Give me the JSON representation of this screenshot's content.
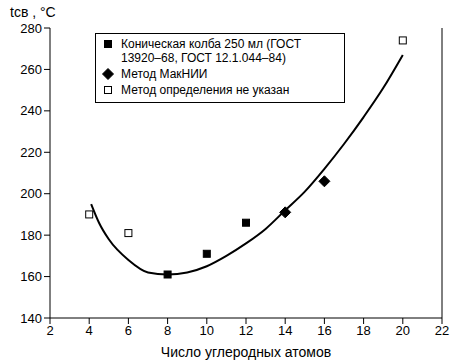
{
  "chart_data": {
    "type": "scatter",
    "xlabel": "Число углеродных атомов",
    "ylabel": "tсв , °C",
    "xlim": [
      2,
      22
    ],
    "xticks": [
      2,
      4,
      6,
      8,
      10,
      12,
      14,
      16,
      18,
      20,
      22
    ],
    "ylim": [
      140,
      280
    ],
    "yticks": [
      140,
      160,
      180,
      200,
      220,
      240,
      260,
      280
    ],
    "grid": false,
    "legend": "upper left",
    "series": [
      {
        "name": "Коническая колба 250 мл (ГОСТ 13920–68, ГОСТ 12.1.044–84)",
        "color": "#000000",
        "marker": "square",
        "x": [
          8,
          10,
          12
        ],
        "values": [
          161,
          171,
          186
        ]
      },
      {
        "name": "Метод МакНИИ",
        "color": "#000000",
        "marker": "diamond",
        "x": [
          14,
          16
        ],
        "values": [
          191,
          206
        ]
      },
      {
        "name": "Метод определения не указан",
        "color": "#000000",
        "marker": "open_square",
        "x": [
          4,
          6,
          20
        ],
        "values": [
          190,
          181,
          274
        ]
      },
      {
        "type": "line",
        "color": "#000000",
        "line_style": "solid",
        "x": [
          4.1,
          4.5,
          5,
          6,
          7,
          8,
          9,
          10,
          11,
          12,
          13,
          14,
          15,
          16,
          17,
          18,
          19,
          20
        ],
        "values": [
          195,
          186,
          178,
          168,
          162,
          161,
          162,
          165,
          170,
          176,
          183,
          192,
          201,
          212,
          224,
          237,
          251,
          267
        ]
      }
    ]
  }
}
